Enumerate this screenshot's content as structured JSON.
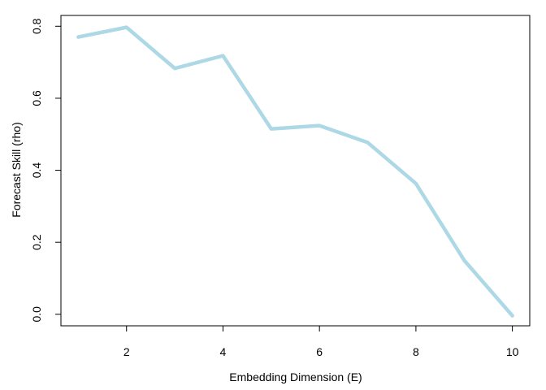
{
  "chart_data": {
    "type": "line",
    "title": "",
    "xlabel": "Embedding Dimension (E)",
    "ylabel": "Forecast Skill (rho)",
    "xlim": [
      0.64,
      10.36
    ],
    "ylim": [
      -0.032,
      0.83
    ],
    "x_ticks": [
      2,
      4,
      6,
      8,
      10
    ],
    "x_tick_labels": [
      "2",
      "4",
      "6",
      "8",
      "10"
    ],
    "y_ticks": [
      0.0,
      0.2,
      0.4,
      0.6,
      0.8
    ],
    "y_tick_labels": [
      "0.0",
      "0.2",
      "0.4",
      "0.6",
      "0.8"
    ],
    "grid": false,
    "legend": "none",
    "series": [
      {
        "color": "#add8e6",
        "x": [
          1,
          2,
          3,
          4,
          5,
          6,
          7,
          8,
          9,
          10
        ],
        "values": [
          0.77,
          0.797,
          0.683,
          0.718,
          0.515,
          0.524,
          0.477,
          0.363,
          0.15,
          -0.004
        ]
      }
    ]
  }
}
